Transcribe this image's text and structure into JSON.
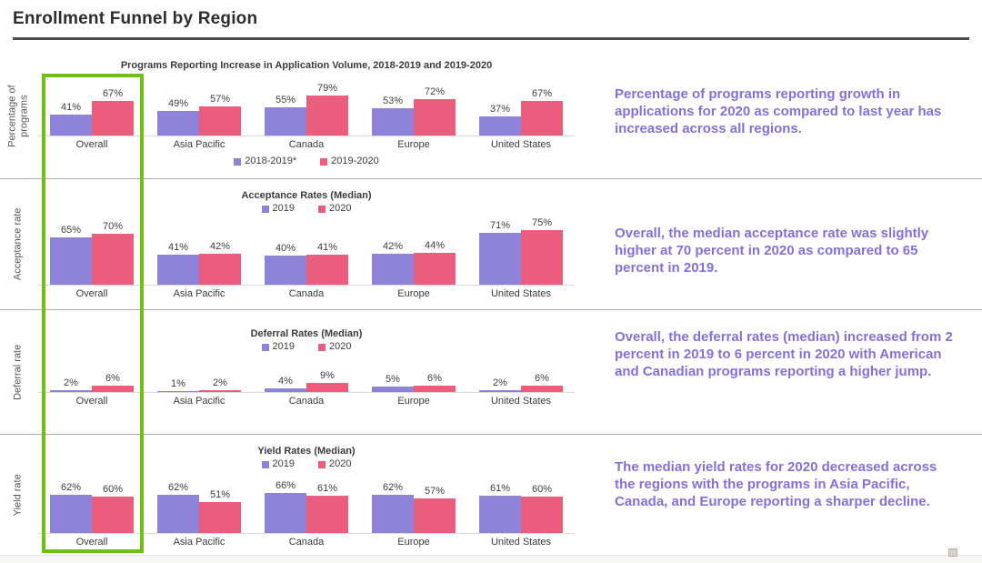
{
  "page": {
    "title": "Enrollment Funnel by Region"
  },
  "colors": {
    "series1": "#8d83d9",
    "series2": "#ec5c7c",
    "annotation_text": "#8172da",
    "highlight_box": "#6fbe1a",
    "axis_line": "#d9d9d9"
  },
  "chart_data": [
    {
      "type": "bar",
      "title": "Programs Reporting Increase in Application Volume, 2018-2019 and 2019-2020",
      "ylabel": "Percentage of programs",
      "categories": [
        "Overall",
        "Asia Pacific",
        "Canada",
        "Europe",
        "United States"
      ],
      "series": [
        {
          "name": "2018-2019*",
          "values": [
            41,
            49,
            55,
            53,
            37
          ]
        },
        {
          "name": "2019-2020",
          "values": [
            67,
            57,
            79,
            72,
            67
          ]
        }
      ],
      "value_suffix": "%",
      "legend_position": "bottom",
      "grid": false,
      "annotation": "Percentage of programs reporting growth in applications for 2020 as compared to last year has increased across all regions."
    },
    {
      "type": "bar",
      "title": "Acceptance Rates (Median)",
      "ylabel": "Acceptance rate",
      "categories": [
        "Overall",
        "Asia Pacific",
        "Canada",
        "Europe",
        "United States"
      ],
      "series": [
        {
          "name": "2019",
          "values": [
            65,
            41,
            40,
            42,
            71
          ]
        },
        {
          "name": "2020",
          "values": [
            70,
            42,
            41,
            44,
            75
          ]
        }
      ],
      "value_suffix": "%",
      "legend_position": "top",
      "grid": false,
      "annotation": "Overall, the median acceptance rate was slightly higher at 70 percent in 2020 as compared to 65 percent in 2019."
    },
    {
      "type": "bar",
      "title": "Deferral Rates (Median)",
      "ylabel": "Deferral rate",
      "categories": [
        "Overall",
        "Asia Pacific",
        "Canada",
        "Europe",
        "United States"
      ],
      "series": [
        {
          "name": "2019",
          "values": [
            2,
            1,
            4,
            5,
            2
          ]
        },
        {
          "name": "2020",
          "values": [
            6,
            2,
            9,
            6,
            6
          ]
        }
      ],
      "value_suffix": "%",
      "legend_position": "top",
      "grid": false,
      "annotation": "Overall, the deferral rates (median) increased from 2 percent in 2019 to 6 percent in 2020 with American and Canadian programs reporting a higher jump."
    },
    {
      "type": "bar",
      "title": "Yield Rates (Median)",
      "ylabel": "Yield rate",
      "categories": [
        "Overall",
        "Asia Pacific",
        "Canada",
        "Europe",
        "United States"
      ],
      "series": [
        {
          "name": "2019",
          "values": [
            62,
            62,
            66,
            62,
            61
          ]
        },
        {
          "name": "2020",
          "values": [
            60,
            51,
            61,
            57,
            60
          ]
        }
      ],
      "value_suffix": "%",
      "legend_position": "top",
      "grid": false,
      "annotation": "The median yield rates for 2020 decreased across the regions with the programs in Asia Pacific, Canada, and Europe reporting a sharper decline."
    }
  ]
}
